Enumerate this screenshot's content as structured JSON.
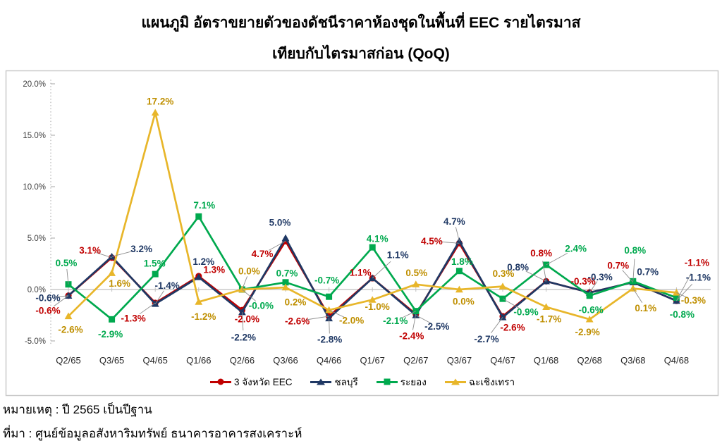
{
  "title": {
    "line1": "แผนภูมิ อัตราขยายตัวของดัชนีราคาห้องชุดในพื้นที่ EEC รายไตรมาส",
    "line2": "เทียบกับไตรมาสก่อน (QoQ)"
  },
  "notes": {
    "note": "หมายเหตุ : ปี 2565 เป็นปีฐาน",
    "source": "ที่มา : ศูนย์ข้อมูลอสังหาริมทรัพย์ ธนาคารอาคารสงเคราะห์"
  },
  "chart_data": {
    "type": "line",
    "title": "แผนภูมิ อัตราขยายตัวของดัชนีราคาห้องชุดในพื้นที่ EEC รายไตรมาส เทียบกับไตรมาสก่อน (QoQ)",
    "xlabel": "",
    "ylabel": "",
    "ylim": [
      -5,
      20
    ],
    "grid": false,
    "legend_position": "bottom",
    "y_axis": {
      "tick_labels": [
        "20.0%",
        "15.0%",
        "10.0%",
        "5.0%",
        "0.0%",
        "-5.0%"
      ],
      "tick_values": [
        20,
        15,
        10,
        5,
        0,
        -5
      ]
    },
    "categories": [
      "Q2/65",
      "Q3/65",
      "Q4/65",
      "Q1/66",
      "Q2/66",
      "Q3/66",
      "Q4/66",
      "Q1/67",
      "Q2/67",
      "Q3/67",
      "Q4/67",
      "Q1/68",
      "Q2/68",
      "Q3/68",
      "Q4/68"
    ],
    "series": [
      {
        "name": "3 จังหวัด EEC",
        "color": "#C00000",
        "label_color": "#C00000",
        "marker": "circle",
        "values": [
          -0.6,
          3.1,
          -1.3,
          1.3,
          -2.0,
          4.7,
          -2.6,
          1.1,
          -2.4,
          4.5,
          -2.6,
          0.8,
          -0.3,
          0.7,
          -1.1
        ],
        "labels": [
          "-0.6%",
          "3.1%",
          "-1.3%",
          "1.3%",
          "-2.0%",
          "4.7%",
          "-2.6%",
          "1.1%",
          "-2.4%",
          "4.5%",
          "-2.6%",
          "0.8%",
          "-0.3%",
          "0.7%",
          "-1.1%"
        ],
        "label_offsets": [
          [
            -29,
            21
          ],
          [
            -31,
            -10
          ],
          [
            -31,
            22
          ],
          [
            22,
            -9
          ],
          [
            7,
            13
          ],
          [
            -33,
            18
          ],
          [
            -45,
            7
          ],
          [
            -17,
            -8
          ],
          [
            -6,
            31
          ],
          [
            -39,
            -3
          ],
          [
            14,
            16
          ],
          [
            -7,
            -40
          ],
          [
            -9,
            -16
          ],
          [
            -21,
            -24
          ],
          [
            29,
            -54
          ]
        ]
      },
      {
        "name": "ชลบุรี",
        "color": "#1F3864",
        "label_color": "#1F3864",
        "marker": "triangle",
        "values": [
          -0.6,
          3.2,
          -1.4,
          1.2,
          -2.2,
          5.0,
          -2.8,
          1.1,
          -2.5,
          4.7,
          -2.7,
          0.8,
          -0.3,
          0.7,
          -1.1
        ],
        "labels": [
          "-0.6%",
          "3.2%",
          "-1.4%",
          "1.2%",
          "-2.2%",
          "5.0%",
          "-2.8%",
          "1.1%",
          "-2.5%",
          "4.7%",
          "-2.7%",
          "0.8%",
          "-0.3%",
          "0.7%",
          "-1.1%"
        ],
        "label_offsets": [
          [
            -29,
            3
          ],
          [
            42,
            -11
          ],
          [
            17,
            -26
          ],
          [
            7,
            -22
          ],
          [
            2,
            36
          ],
          [
            -8,
            -22
          ],
          [
            1,
            30
          ],
          [
            36,
            -33
          ],
          [
            30,
            16
          ],
          [
            -7,
            -28
          ],
          [
            -23,
            31
          ],
          [
            -40,
            -20
          ],
          [
            15,
            -22
          ],
          [
            21,
            -15
          ],
          [
            31,
            -33
          ]
        ]
      },
      {
        "name": "ระยอง",
        "color": "#00A94E",
        "label_color": "#00A94E",
        "marker": "square",
        "values": [
          0.5,
          -2.9,
          1.5,
          7.1,
          -0.0,
          0.7,
          -0.7,
          4.1,
          -2.1,
          1.8,
          -0.9,
          2.4,
          -0.6,
          0.8,
          -0.8
        ],
        "labels": [
          "0.5%",
          "-2.9%",
          "1.5%",
          "7.1%",
          "-0.0%",
          "0.7%",
          "-0.7%",
          "4.1%",
          "-2.1%",
          "1.8%",
          "-0.9%",
          "2.4%",
          "-0.6%",
          "0.8%",
          "-0.8%"
        ],
        "label_offsets": [
          [
            -3,
            -30
          ],
          [
            -2,
            21
          ],
          [
            -1,
            -15
          ],
          [
            8,
            -16
          ],
          [
            27,
            23
          ],
          [
            2,
            -13
          ],
          [
            -3,
            -23
          ],
          [
            7,
            -12
          ],
          [
            -29,
            14
          ],
          [
            4,
            -13
          ],
          [
            33,
            19
          ],
          [
            42,
            -23
          ],
          [
            2,
            20
          ],
          [
            3,
            -44
          ],
          [
            8,
            24
          ]
        ]
      },
      {
        "name": "ฉะเชิงเทรา",
        "color": "#E8B62A",
        "label_color": "#BF8F00",
        "marker": "triangle",
        "values": [
          -2.6,
          1.6,
          17.2,
          -1.2,
          0.0,
          0.2,
          -2.0,
          -1.0,
          0.5,
          0.0,
          0.3,
          -1.7,
          -2.9,
          0.1,
          -0.3
        ],
        "labels": [
          "-2.6%",
          "1.6%",
          "17.2%",
          "-1.2%",
          "0.0%",
          "0.2%",
          "-2.0%",
          "-1.0%",
          "0.5%",
          "0.0%",
          "0.3%",
          "-1.7%",
          "-2.9%",
          "0.1%",
          "-0.3%"
        ],
        "label_offsets": [
          [
            3,
            19
          ],
          [
            11,
            15
          ],
          [
            7,
            -16
          ],
          [
            7,
            21
          ],
          [
            10,
            -26
          ],
          [
            14,
            21
          ],
          [
            32,
            15
          ],
          [
            7,
            10
          ],
          [
            1,
            -16
          ],
          [
            6,
            17
          ],
          [
            1,
            -18
          ],
          [
            4,
            17
          ],
          [
            -3,
            18
          ],
          [
            18,
            28
          ],
          [
            24,
            11
          ]
        ]
      }
    ]
  }
}
